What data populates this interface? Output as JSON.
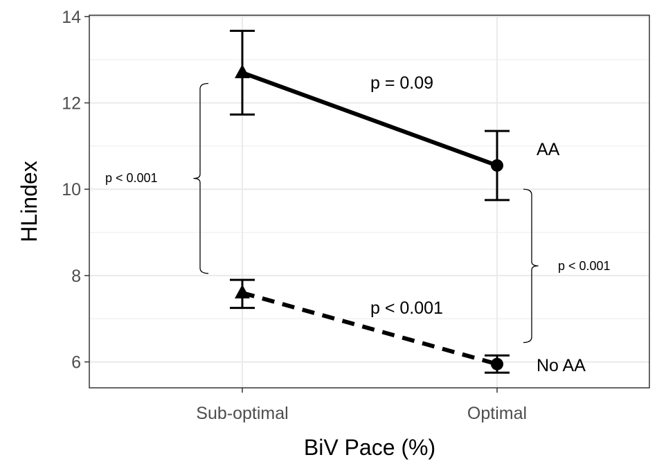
{
  "chart_data": {
    "type": "line",
    "title": "",
    "xlabel": "BiV Pace (%)",
    "ylabel": "HLindex",
    "categories": [
      "Sub-optimal",
      "Optimal"
    ],
    "ylim": [
      5.4,
      14.03
    ],
    "yticks": [
      6,
      8,
      10,
      12,
      14
    ],
    "grid": true,
    "series": [
      {
        "name": "AA",
        "marker": [
          "triangle",
          "circle"
        ],
        "linestyle": "solid",
        "values": [
          12.7,
          10.55
        ],
        "lower": [
          11.73,
          9.75
        ],
        "upper": [
          13.67,
          11.35
        ]
      },
      {
        "name": "No AA",
        "marker": [
          "triangle",
          "circle"
        ],
        "linestyle": "dashed",
        "values": [
          7.6,
          5.95
        ],
        "lower": [
          7.25,
          5.75
        ],
        "upper": [
          7.9,
          6.15
        ]
      }
    ],
    "annotations": [
      {
        "text": "p = 0.09",
        "position": "between AA points"
      },
      {
        "text": "p < 0.001",
        "position": "between No AA points"
      },
      {
        "text": "p < 0.001",
        "position": "left brace Sub-optimal",
        "brace_range": [
          8.05,
          12.45
        ]
      },
      {
        "text": "p < 0.001",
        "position": "right brace Optimal",
        "brace_range": [
          6.45,
          10.0
        ]
      }
    ],
    "colors": {
      "line": "#000000",
      "grid": "#ebebeb",
      "tick_text": "#4d4d4d",
      "border": "#333333"
    }
  }
}
